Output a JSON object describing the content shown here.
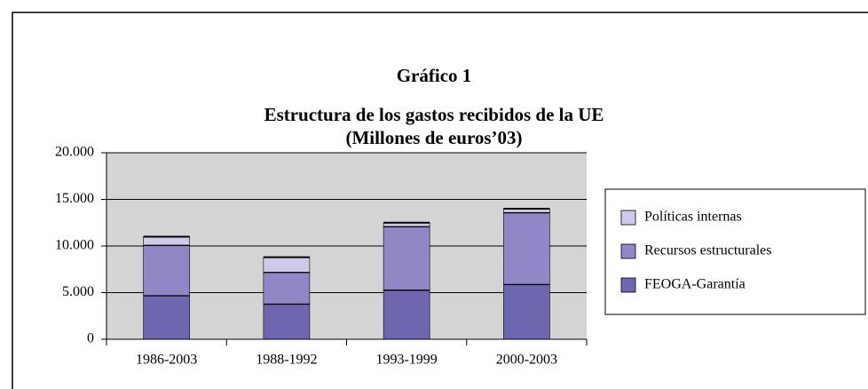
{
  "chart_data": {
    "type": "stacked_bar",
    "title": "Gráfico 1",
    "subtitle": "Estructura de los gastos recibidos de la UE",
    "subtitle2": "(Millones de euros’03)",
    "categories": [
      "1986-2003",
      "1988-1992",
      "1993-1999",
      "2000-2003"
    ],
    "series": [
      {
        "name": "FEOGA-Garantía",
        "color": "#6f66b0",
        "values": [
          4700,
          3800,
          5300,
          5900
        ]
      },
      {
        "name": "Recursos estructurales",
        "color": "#9087c6",
        "values": [
          5400,
          3400,
          6800,
          7700
        ]
      },
      {
        "name": "Políticas internas",
        "color": "#cdcaea",
        "values": [
          900,
          1600,
          400,
          400
        ]
      }
    ],
    "ylim": [
      0,
      20000
    ],
    "yticks": [
      0,
      {
        "value": 5000,
        "label": "5.000"
      },
      {
        "value": 10000,
        "label": "10.000"
      },
      {
        "value": 15000,
        "label": "15.000"
      },
      {
        "value": 20000,
        "label": "20.000"
      }
    ],
    "grid": true
  }
}
